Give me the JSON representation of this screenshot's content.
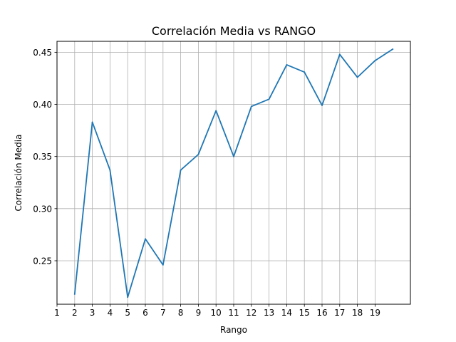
{
  "chart_data": {
    "type": "line",
    "title": "Correlación Media vs RANGO",
    "xlabel": "Rango",
    "ylabel": "Correlación Media",
    "x": [
      2,
      3,
      4,
      5,
      6,
      7,
      8,
      9,
      10,
      11,
      12,
      13,
      14,
      15,
      16,
      17,
      18,
      19,
      20
    ],
    "series": [
      {
        "name": "",
        "color": "#1f77b4",
        "values": [
          0.218,
          0.383,
          0.337,
          0.215,
          0.271,
          0.246,
          0.337,
          0.352,
          0.394,
          0.35,
          0.398,
          0.405,
          0.438,
          0.431,
          0.399,
          0.448,
          0.426,
          0.442,
          0.453
        ]
      }
    ],
    "xticks": [
      1,
      2,
      3,
      4,
      5,
      6,
      7,
      8,
      9,
      10,
      11,
      12,
      13,
      14,
      15,
      16,
      17,
      18,
      19
    ],
    "xtick_labels": [
      "1",
      "2",
      "3",
      "4",
      "5",
      "6",
      "7",
      "8",
      "9",
      "10",
      "11",
      "12",
      "13",
      "14",
      "15",
      "16",
      "17",
      "18",
      "19"
    ],
    "yticks": [
      0.25,
      0.3,
      0.35,
      0.4,
      0.45
    ],
    "ytick_labels": [
      "0.25",
      "0.30",
      "0.35",
      "0.40",
      "0.45"
    ],
    "xlim": [
      1,
      21
    ],
    "ylim": [
      0.2083,
      0.4605
    ],
    "grid": true,
    "legend": false
  }
}
